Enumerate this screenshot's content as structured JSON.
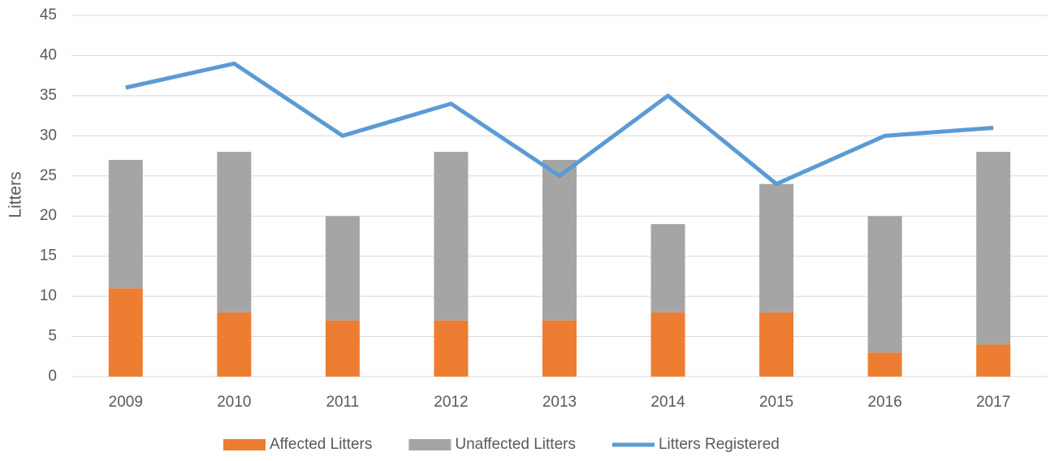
{
  "chart_data": {
    "type": "bar",
    "stacked": true,
    "y_label": "Litters",
    "categories": [
      "2009",
      "2010",
      "2011",
      "2012",
      "2013",
      "2014",
      "2015",
      "2016",
      "2017"
    ],
    "series": [
      {
        "name": "Affected Litters",
        "type": "bar",
        "color": "#ed7d31",
        "values": [
          11,
          8,
          7,
          7,
          7,
          8,
          8,
          3,
          4
        ]
      },
      {
        "name": "Unaffected Litters",
        "type": "bar",
        "color": "#a5a5a5",
        "values": [
          16,
          20,
          13,
          21,
          20,
          11,
          16,
          17,
          24
        ]
      },
      {
        "name": "Litters Registered",
        "type": "line",
        "color": "#5b9bd5",
        "values": [
          36,
          39,
          30,
          34,
          25,
          35,
          24,
          30,
          31
        ]
      }
    ],
    "ylim": [
      0,
      45
    ],
    "yticks": [
      0,
      5,
      10,
      15,
      20,
      25,
      30,
      35,
      40,
      45
    ],
    "grid": true,
    "legend": "bottom"
  }
}
